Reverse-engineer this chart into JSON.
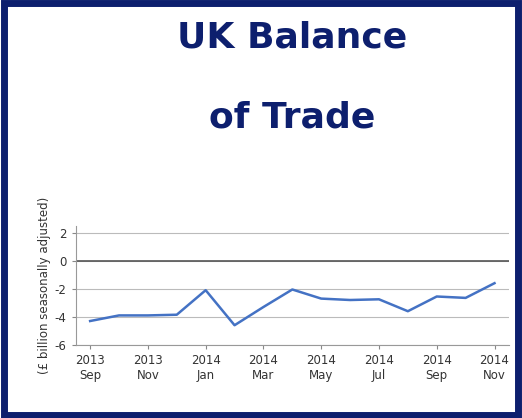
{
  "title_line1": "UK Balance",
  "title_line2": "of Trade",
  "title_color": "#0d1f6e",
  "ylabel": "(£ billion seasonally adjusted)",
  "background_color": "#ffffff",
  "border_color": "#0d1f6e",
  "line_color": "#4472c4",
  "ylim": [
    -6,
    2.5
  ],
  "yticks": [
    -6,
    -4,
    -2,
    0,
    2
  ],
  "x_labels": [
    "2013\nSep",
    "2013\nNov",
    "2014\nJan",
    "2014\nMar",
    "2014\nMay",
    "2014\nJul",
    "2014\nSep",
    "2014\nNov"
  ],
  "x_positions": [
    0,
    2,
    4,
    6,
    8,
    10,
    12,
    14
  ],
  "data_x": [
    0,
    1,
    2,
    3,
    4,
    5,
    6,
    7,
    8,
    9,
    10,
    11,
    12,
    13,
    14
  ],
  "data_y": [
    -4.3,
    -3.9,
    -3.9,
    -3.85,
    -2.1,
    -4.6,
    -3.3,
    -2.05,
    -2.7,
    -2.8,
    -2.75,
    -3.6,
    -2.55,
    -2.65,
    -1.6
  ],
  "grid_color": "#bbbbbb",
  "zero_line_color": "#555555",
  "title_fontsize": 26,
  "ylabel_fontsize": 8.5,
  "tick_fontsize": 8.5,
  "line_width": 1.8
}
